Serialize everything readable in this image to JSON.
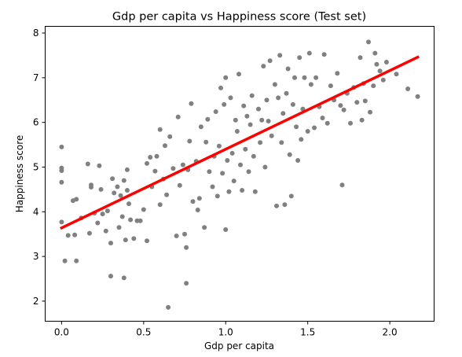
{
  "chart_data": {
    "type": "scatter",
    "title": "Gdp per capita vs Happiness score (Test set)",
    "xlabel": "Gdp per capita",
    "ylabel": "Happiness score",
    "xlim": [
      -0.1,
      2.27
    ],
    "ylim": [
      1.55,
      8.15
    ],
    "xticks": [
      "0.0",
      "0.5",
      "1.0",
      "1.5",
      "2.0"
    ],
    "yticks": [
      "2",
      "3",
      "4",
      "5",
      "6",
      "7",
      "8"
    ],
    "point_color": "#808080",
    "line_color": "#ff0000",
    "regression_line": {
      "x": [
        0.0,
        2.17
      ],
      "y": [
        3.64,
        7.46
      ]
    },
    "series": [
      {
        "values": [
          [
            0.0,
            5.45
          ],
          [
            0.0,
            4.98
          ],
          [
            0.0,
            4.92
          ],
          [
            0.0,
            4.66
          ],
          [
            0.0,
            3.77
          ],
          [
            0.02,
            2.9
          ],
          [
            0.04,
            3.47
          ],
          [
            0.07,
            4.25
          ],
          [
            0.08,
            3.48
          ],
          [
            0.09,
            4.28
          ],
          [
            0.09,
            2.9
          ],
          [
            0.12,
            3.86
          ],
          [
            0.16,
            5.07
          ],
          [
            0.17,
            3.52
          ],
          [
            0.18,
            4.55
          ],
          [
            0.18,
            4.6
          ],
          [
            0.2,
            3.97
          ],
          [
            0.22,
            3.75
          ],
          [
            0.23,
            5.03
          ],
          [
            0.24,
            4.5
          ],
          [
            0.25,
            3.95
          ],
          [
            0.27,
            3.57
          ],
          [
            0.28,
            4.02
          ],
          [
            0.3,
            2.56
          ],
          [
            0.3,
            3.3
          ],
          [
            0.31,
            4.74
          ],
          [
            0.32,
            4.42
          ],
          [
            0.34,
            4.56
          ],
          [
            0.35,
            3.65
          ],
          [
            0.36,
            4.36
          ],
          [
            0.37,
            3.89
          ],
          [
            0.38,
            2.52
          ],
          [
            0.38,
            4.7
          ],
          [
            0.39,
            3.37
          ],
          [
            0.4,
            4.48
          ],
          [
            0.4,
            4.94
          ],
          [
            0.41,
            4.18
          ],
          [
            0.42,
            3.82
          ],
          [
            0.44,
            3.4
          ],
          [
            0.46,
            3.8
          ],
          [
            0.48,
            3.8
          ],
          [
            0.5,
            4.05
          ],
          [
            0.52,
            3.35
          ],
          [
            0.52,
            5.08
          ],
          [
            0.54,
            5.22
          ],
          [
            0.55,
            4.56
          ],
          [
            0.57,
            4.91
          ],
          [
            0.58,
            5.24
          ],
          [
            0.6,
            5.84
          ],
          [
            0.6,
            4.16
          ],
          [
            0.62,
            4.73
          ],
          [
            0.63,
            5.48
          ],
          [
            0.64,
            4.38
          ],
          [
            0.65,
            1.86
          ],
          [
            0.66,
            5.68
          ],
          [
            0.68,
            4.97
          ],
          [
            0.7,
            3.46
          ],
          [
            0.71,
            6.12
          ],
          [
            0.72,
            4.59
          ],
          [
            0.74,
            5.05
          ],
          [
            0.75,
            3.5
          ],
          [
            0.76,
            2.4
          ],
          [
            0.76,
            3.2
          ],
          [
            0.77,
            4.94
          ],
          [
            0.78,
            5.58
          ],
          [
            0.79,
            6.42
          ],
          [
            0.8,
            4.23
          ],
          [
            0.82,
            5.13
          ],
          [
            0.83,
            4.04
          ],
          [
            0.84,
            4.3
          ],
          [
            0.85,
            5.9
          ],
          [
            0.87,
            3.65
          ],
          [
            0.88,
            5.56
          ],
          [
            0.89,
            6.07
          ],
          [
            0.9,
            4.9
          ],
          [
            0.92,
            4.56
          ],
          [
            0.93,
            5.24
          ],
          [
            0.94,
            6.24
          ],
          [
            0.95,
            4.35
          ],
          [
            0.96,
            5.47
          ],
          [
            0.97,
            6.77
          ],
          [
            0.98,
            4.86
          ],
          [
            0.99,
            6.4
          ],
          [
            1.0,
            7.0
          ],
          [
            1.0,
            3.6
          ],
          [
            1.01,
            5.15
          ],
          [
            1.02,
            4.45
          ],
          [
            1.03,
            6.55
          ],
          [
            1.04,
            5.31
          ],
          [
            1.05,
            4.69
          ],
          [
            1.06,
            6.05
          ],
          [
            1.07,
            5.8
          ],
          [
            1.08,
            7.08
          ],
          [
            1.09,
            5.05
          ],
          [
            1.1,
            4.48
          ],
          [
            1.11,
            6.37
          ],
          [
            1.12,
            5.4
          ],
          [
            1.13,
            6.14
          ],
          [
            1.14,
            4.9
          ],
          [
            1.15,
            5.95
          ],
          [
            1.16,
            6.6
          ],
          [
            1.17,
            5.24
          ],
          [
            1.18,
            4.45
          ],
          [
            1.2,
            6.3
          ],
          [
            1.21,
            5.55
          ],
          [
            1.22,
            6.05
          ],
          [
            1.23,
            7.26
          ],
          [
            1.24,
            5.0
          ],
          [
            1.25,
            6.5
          ],
          [
            1.26,
            6.03
          ],
          [
            1.27,
            7.38
          ],
          [
            1.28,
            5.7
          ],
          [
            1.3,
            6.85
          ],
          [
            1.31,
            4.13
          ],
          [
            1.32,
            6.55
          ],
          [
            1.33,
            7.5
          ],
          [
            1.34,
            5.55
          ],
          [
            1.35,
            6.2
          ],
          [
            1.36,
            4.16
          ],
          [
            1.37,
            6.65
          ],
          [
            1.38,
            7.2
          ],
          [
            1.39,
            5.28
          ],
          [
            1.4,
            4.35
          ],
          [
            1.41,
            6.4
          ],
          [
            1.42,
            7.0
          ],
          [
            1.43,
            5.9
          ],
          [
            1.44,
            5.15
          ],
          [
            1.45,
            7.45
          ],
          [
            1.46,
            5.62
          ],
          [
            1.47,
            6.3
          ],
          [
            1.48,
            7.0
          ],
          [
            1.5,
            5.8
          ],
          [
            1.51,
            7.55
          ],
          [
            1.52,
            6.85
          ],
          [
            1.54,
            5.88
          ],
          [
            1.55,
            7.0
          ],
          [
            1.57,
            6.35
          ],
          [
            1.59,
            6.1
          ],
          [
            1.6,
            7.52
          ],
          [
            1.62,
            5.98
          ],
          [
            1.64,
            6.82
          ],
          [
            1.66,
            6.5
          ],
          [
            1.68,
            7.1
          ],
          [
            1.7,
            6.38
          ],
          [
            1.71,
            4.6
          ],
          [
            1.72,
            6.28
          ],
          [
            1.74,
            6.65
          ],
          [
            1.76,
            5.98
          ],
          [
            1.78,
            6.78
          ],
          [
            1.8,
            6.45
          ],
          [
            1.82,
            7.45
          ],
          [
            1.83,
            6.05
          ],
          [
            1.84,
            6.87
          ],
          [
            1.85,
            6.48
          ],
          [
            1.87,
            7.8
          ],
          [
            1.88,
            6.23
          ],
          [
            1.9,
            6.82
          ],
          [
            1.91,
            7.55
          ],
          [
            1.92,
            7.3
          ],
          [
            1.94,
            7.15
          ],
          [
            1.96,
            6.95
          ],
          [
            1.98,
            7.35
          ],
          [
            2.04,
            7.08
          ],
          [
            2.11,
            6.75
          ],
          [
            2.17,
            6.58
          ]
        ]
      }
    ]
  }
}
